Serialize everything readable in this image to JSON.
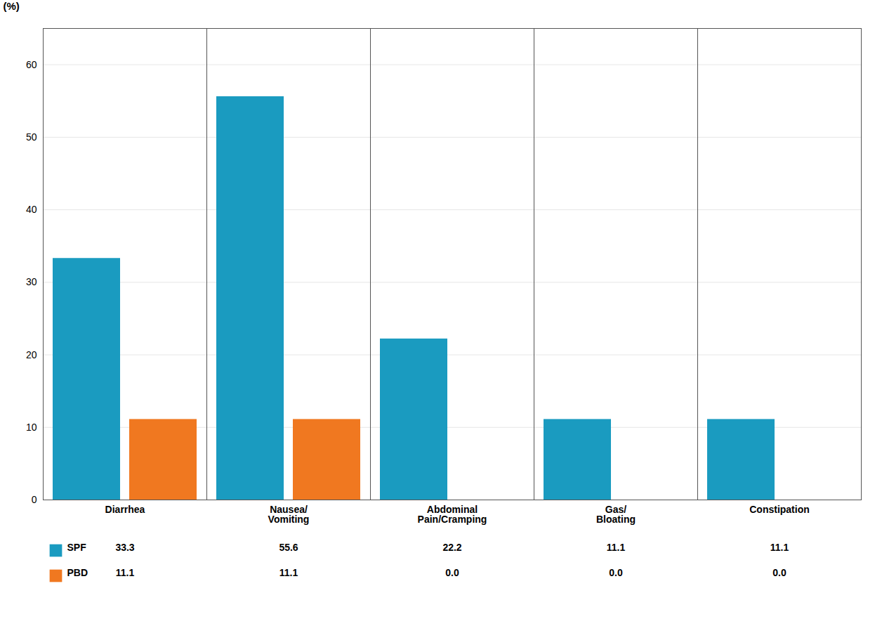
{
  "chart_data": {
    "type": "bar",
    "categories": [
      "Diarrhea",
      "Nausea/\nVomiting",
      "Abdominal\nPain/Cramping",
      "Gas/\nBloating",
      "Constipation"
    ],
    "series": [
      {
        "name": "SPF",
        "color": "#1a9bc0",
        "values": [
          33.3,
          55.6,
          22.2,
          11.1,
          11.1
        ],
        "value_labels": [
          "33.3",
          "55.6",
          "22.2",
          "11.1",
          "11.1"
        ]
      },
      {
        "name": "PBD",
        "color": "#f07820",
        "values": [
          11.1,
          11.1,
          0.0,
          0.0,
          0.0
        ],
        "value_labels": [
          "11.1",
          "11.1",
          "0.0",
          "0.0",
          "0.0"
        ]
      }
    ],
    "ylabel": "(%)",
    "ylim": [
      0,
      65
    ],
    "yticks": [
      0,
      10,
      20,
      30,
      40,
      50,
      60
    ],
    "grid": true,
    "data_labels": true
  }
}
